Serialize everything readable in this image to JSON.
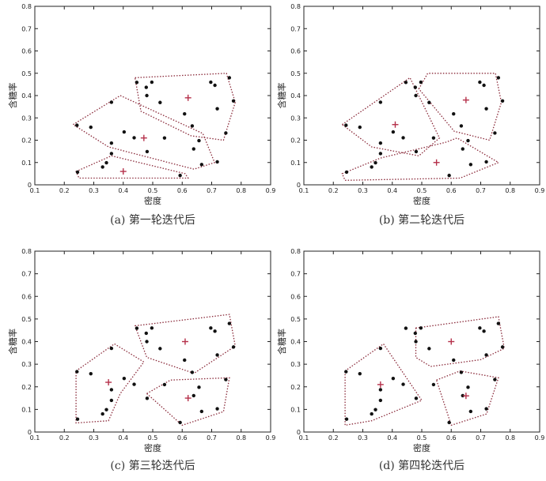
{
  "chart_data": [
    {
      "type": "scatter",
      "caption": "(a) 第一轮迭代后",
      "xlabel": "密度",
      "ylabel": "含糖率",
      "xlim": [
        0.1,
        0.9
      ],
      "ylim": [
        0,
        0.8
      ],
      "xticks": [
        "0.1",
        "0.2",
        "0.3",
        "0.4",
        "0.5",
        "0.6",
        "0.7",
        "0.8",
        "0.9"
      ],
      "yticks": [
        "0",
        "0.1",
        "0.2",
        "0.3",
        "0.4",
        "0.5",
        "0.6",
        "0.7",
        "0.8"
      ],
      "points": [
        [
          0.243,
          0.267
        ],
        [
          0.245,
          0.057
        ],
        [
          0.343,
          0.099
        ],
        [
          0.36,
          0.37
        ],
        [
          0.36,
          0.187
        ],
        [
          0.403,
          0.237
        ],
        [
          0.437,
          0.211
        ],
        [
          0.446,
          0.459
        ],
        [
          0.478,
          0.437
        ],
        [
          0.481,
          0.149
        ],
        [
          0.497,
          0.46
        ],
        [
          0.525,
          0.369
        ],
        [
          0.593,
          0.042
        ],
        [
          0.608,
          0.318
        ],
        [
          0.634,
          0.264
        ],
        [
          0.639,
          0.161
        ],
        [
          0.657,
          0.198
        ],
        [
          0.666,
          0.091
        ],
        [
          0.697,
          0.46
        ],
        [
          0.719,
          0.103
        ],
        [
          0.748,
          0.232
        ],
        [
          0.774,
          0.376
        ],
        [
          0.719,
          0.341
        ],
        [
          0.711,
          0.446
        ],
        [
          0.76,
          0.48
        ],
        [
          0.48,
          0.4
        ],
        [
          0.29,
          0.258
        ],
        [
          0.36,
          0.14
        ],
        [
          0.33,
          0.08
        ],
        [
          0.54,
          0.21
        ]
      ],
      "centroids": [
        [
          0.4,
          0.06
        ],
        [
          0.47,
          0.21
        ],
        [
          0.62,
          0.39
        ]
      ],
      "clusters": [
        [
          [
            0.24,
            0.06
          ],
          [
            0.36,
            0.13
          ],
          [
            0.61,
            0.05
          ],
          [
            0.62,
            0.03
          ],
          [
            0.25,
            0.03
          ]
        ],
        [
          [
            0.23,
            0.27
          ],
          [
            0.39,
            0.4
          ],
          [
            0.67,
            0.23
          ],
          [
            0.71,
            0.1
          ],
          [
            0.64,
            0.07
          ],
          [
            0.35,
            0.17
          ]
        ],
        [
          [
            0.44,
            0.48
          ],
          [
            0.75,
            0.5
          ],
          [
            0.78,
            0.37
          ],
          [
            0.74,
            0.2
          ],
          [
            0.63,
            0.22
          ],
          [
            0.46,
            0.33
          ]
        ]
      ]
    },
    {
      "type": "scatter",
      "caption": "(b) 第二轮迭代后",
      "xlabel": "密度",
      "ylabel": "含糖率",
      "xlim": [
        0.1,
        0.9
      ],
      "ylim": [
        0,
        0.8
      ],
      "xticks": [
        "0.1",
        "0.2",
        "0.3",
        "0.4",
        "0.5",
        "0.6",
        "0.7",
        "0.8",
        "0.9"
      ],
      "yticks": [
        "0",
        "0.1",
        "0.2",
        "0.3",
        "0.4",
        "0.5",
        "0.6",
        "0.7",
        "0.8"
      ],
      "points": [
        [
          0.243,
          0.267
        ],
        [
          0.245,
          0.057
        ],
        [
          0.343,
          0.099
        ],
        [
          0.36,
          0.37
        ],
        [
          0.36,
          0.187
        ],
        [
          0.403,
          0.237
        ],
        [
          0.437,
          0.211
        ],
        [
          0.446,
          0.459
        ],
        [
          0.478,
          0.437
        ],
        [
          0.481,
          0.149
        ],
        [
          0.497,
          0.46
        ],
        [
          0.525,
          0.369
        ],
        [
          0.593,
          0.042
        ],
        [
          0.608,
          0.318
        ],
        [
          0.634,
          0.264
        ],
        [
          0.639,
          0.161
        ],
        [
          0.657,
          0.198
        ],
        [
          0.666,
          0.091
        ],
        [
          0.697,
          0.46
        ],
        [
          0.719,
          0.103
        ],
        [
          0.748,
          0.232
        ],
        [
          0.774,
          0.376
        ],
        [
          0.719,
          0.341
        ],
        [
          0.711,
          0.446
        ],
        [
          0.76,
          0.48
        ],
        [
          0.48,
          0.4
        ],
        [
          0.29,
          0.258
        ],
        [
          0.36,
          0.14
        ],
        [
          0.33,
          0.08
        ],
        [
          0.54,
          0.21
        ]
      ],
      "centroids": [
        [
          0.41,
          0.27
        ],
        [
          0.55,
          0.1
        ],
        [
          0.65,
          0.38
        ]
      ],
      "clusters": [
        [
          [
            0.23,
            0.27
          ],
          [
            0.46,
            0.48
          ],
          [
            0.56,
            0.21
          ],
          [
            0.49,
            0.13
          ],
          [
            0.33,
            0.17
          ]
        ],
        [
          [
            0.23,
            0.05
          ],
          [
            0.36,
            0.12
          ],
          [
            0.58,
            0.19
          ],
          [
            0.62,
            0.21
          ],
          [
            0.76,
            0.1
          ],
          [
            0.63,
            0.03
          ],
          [
            0.24,
            0.02
          ]
        ],
        [
          [
            0.49,
            0.43
          ],
          [
            0.52,
            0.5
          ],
          [
            0.75,
            0.5
          ],
          [
            0.77,
            0.37
          ],
          [
            0.73,
            0.2
          ],
          [
            0.61,
            0.24
          ]
        ]
      ]
    },
    {
      "type": "scatter",
      "caption": "(c) 第三轮迭代后",
      "xlabel": "密度",
      "ylabel": "含糖率",
      "xlim": [
        0.1,
        0.9
      ],
      "ylim": [
        0,
        0.8
      ],
      "xticks": [
        "0.1",
        "0.2",
        "0.3",
        "0.4",
        "0.5",
        "0.6",
        "0.7",
        "0.8",
        "0.9"
      ],
      "yticks": [
        "0",
        "0.1",
        "0.2",
        "0.3",
        "0.4",
        "0.5",
        "0.6",
        "0.7",
        "0.8"
      ],
      "points": [
        [
          0.243,
          0.267
        ],
        [
          0.245,
          0.057
        ],
        [
          0.343,
          0.099
        ],
        [
          0.36,
          0.37
        ],
        [
          0.36,
          0.187
        ],
        [
          0.403,
          0.237
        ],
        [
          0.437,
          0.211
        ],
        [
          0.446,
          0.459
        ],
        [
          0.478,
          0.437
        ],
        [
          0.481,
          0.149
        ],
        [
          0.497,
          0.46
        ],
        [
          0.525,
          0.369
        ],
        [
          0.593,
          0.042
        ],
        [
          0.608,
          0.318
        ],
        [
          0.634,
          0.264
        ],
        [
          0.639,
          0.161
        ],
        [
          0.657,
          0.198
        ],
        [
          0.666,
          0.091
        ],
        [
          0.697,
          0.46
        ],
        [
          0.719,
          0.103
        ],
        [
          0.748,
          0.232
        ],
        [
          0.774,
          0.376
        ],
        [
          0.719,
          0.341
        ],
        [
          0.711,
          0.446
        ],
        [
          0.76,
          0.48
        ],
        [
          0.48,
          0.4
        ],
        [
          0.29,
          0.258
        ],
        [
          0.36,
          0.14
        ],
        [
          0.33,
          0.08
        ],
        [
          0.54,
          0.21
        ]
      ],
      "centroids": [
        [
          0.35,
          0.22
        ],
        [
          0.62,
          0.15
        ],
        [
          0.61,
          0.4
        ]
      ],
      "clusters": [
        [
          [
            0.24,
            0.27
          ],
          [
            0.37,
            0.39
          ],
          [
            0.47,
            0.31
          ],
          [
            0.39,
            0.17
          ],
          [
            0.35,
            0.05
          ],
          [
            0.24,
            0.04
          ]
        ],
        [
          [
            0.48,
            0.17
          ],
          [
            0.56,
            0.23
          ],
          [
            0.76,
            0.24
          ],
          [
            0.74,
            0.09
          ],
          [
            0.6,
            0.03
          ]
        ],
        [
          [
            0.44,
            0.47
          ],
          [
            0.76,
            0.52
          ],
          [
            0.78,
            0.38
          ],
          [
            0.64,
            0.26
          ],
          [
            0.48,
            0.33
          ]
        ]
      ]
    },
    {
      "type": "scatter",
      "caption": "(d) 第四轮迭代后",
      "xlabel": "密度",
      "ylabel": "含糖率",
      "xlim": [
        0.1,
        0.9
      ],
      "ylim": [
        0,
        0.8
      ],
      "xticks": [
        "0.1",
        "0.2",
        "0.3",
        "0.4",
        "0.5",
        "0.6",
        "0.7",
        "0.8",
        "0.9"
      ],
      "yticks": [
        "0",
        "0.1",
        "0.2",
        "0.3",
        "0.4",
        "0.5",
        "0.6",
        "0.7",
        "0.8"
      ],
      "points": [
        [
          0.243,
          0.267
        ],
        [
          0.245,
          0.057
        ],
        [
          0.343,
          0.099
        ],
        [
          0.36,
          0.37
        ],
        [
          0.36,
          0.187
        ],
        [
          0.403,
          0.237
        ],
        [
          0.437,
          0.211
        ],
        [
          0.446,
          0.459
        ],
        [
          0.478,
          0.437
        ],
        [
          0.481,
          0.149
        ],
        [
          0.497,
          0.46
        ],
        [
          0.525,
          0.369
        ],
        [
          0.593,
          0.042
        ],
        [
          0.608,
          0.318
        ],
        [
          0.634,
          0.264
        ],
        [
          0.639,
          0.161
        ],
        [
          0.657,
          0.198
        ],
        [
          0.666,
          0.091
        ],
        [
          0.697,
          0.46
        ],
        [
          0.719,
          0.103
        ],
        [
          0.748,
          0.232
        ],
        [
          0.774,
          0.376
        ],
        [
          0.719,
          0.341
        ],
        [
          0.711,
          0.446
        ],
        [
          0.76,
          0.48
        ],
        [
          0.48,
          0.4
        ],
        [
          0.29,
          0.258
        ],
        [
          0.36,
          0.14
        ],
        [
          0.33,
          0.08
        ],
        [
          0.54,
          0.21
        ]
      ],
      "centroids": [
        [
          0.36,
          0.21
        ],
        [
          0.65,
          0.16
        ],
        [
          0.6,
          0.4
        ]
      ],
      "clusters": [
        [
          [
            0.24,
            0.27
          ],
          [
            0.37,
            0.39
          ],
          [
            0.5,
            0.14
          ],
          [
            0.33,
            0.05
          ],
          [
            0.24,
            0.03
          ]
        ],
        [
          [
            0.55,
            0.23
          ],
          [
            0.63,
            0.27
          ],
          [
            0.76,
            0.24
          ],
          [
            0.72,
            0.08
          ],
          [
            0.6,
            0.03
          ]
        ],
        [
          [
            0.48,
            0.46
          ],
          [
            0.76,
            0.51
          ],
          [
            0.78,
            0.37
          ],
          [
            0.7,
            0.32
          ],
          [
            0.53,
            0.29
          ],
          [
            0.48,
            0.33
          ]
        ]
      ]
    }
  ]
}
